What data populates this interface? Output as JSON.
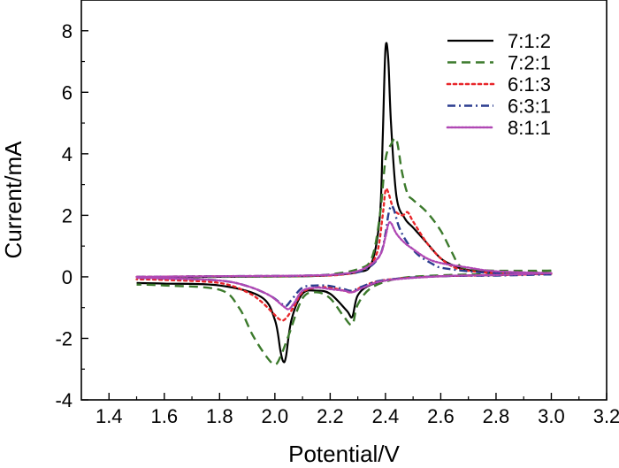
{
  "chart_data": {
    "type": "line",
    "title": "",
    "xlabel": "Potential/V",
    "ylabel": "Current/mA",
    "xlim": [
      1.3,
      3.2
    ],
    "ylim": [
      -4,
      9
    ],
    "x_ticks": [
      1.4,
      1.6,
      1.8,
      2.0,
      2.2,
      2.4,
      2.6,
      2.8,
      3.0,
      3.2
    ],
    "x_tick_labels": [
      "1.4",
      "1.6",
      "1.8",
      "2.0",
      "2.2",
      "2.4",
      "2.6",
      "2.8",
      "3.0",
      "3.2"
    ],
    "y_ticks": [
      -4,
      -2,
      0,
      2,
      4,
      6,
      8
    ],
    "y_tick_labels": [
      "-4",
      "-2",
      "0",
      "2",
      "4",
      "6",
      "8"
    ],
    "grid": false,
    "legend_position": "top-right",
    "series": [
      {
        "name": "7:1:2",
        "color": "#000000",
        "dash": "solid",
        "forward": [
          [
            1.5,
            -0.02
          ],
          [
            1.8,
            0.0
          ],
          [
            2.1,
            0.02
          ],
          [
            2.2,
            0.05
          ],
          [
            2.3,
            0.15
          ],
          [
            2.35,
            0.45
          ],
          [
            2.38,
            2.0
          ],
          [
            2.39,
            4.5
          ],
          [
            2.4,
            7.4
          ],
          [
            2.41,
            7.1
          ],
          [
            2.42,
            5.0
          ],
          [
            2.44,
            2.6
          ],
          [
            2.47,
            1.9
          ],
          [
            2.5,
            1.6
          ],
          [
            2.55,
            1.1
          ],
          [
            2.6,
            0.6
          ],
          [
            2.65,
            0.35
          ],
          [
            2.7,
            0.22
          ],
          [
            2.8,
            0.13
          ],
          [
            3.0,
            0.1
          ]
        ],
        "reverse": [
          [
            3.0,
            0.1
          ],
          [
            2.8,
            0.06
          ],
          [
            2.6,
            0.02
          ],
          [
            2.45,
            -0.05
          ],
          [
            2.35,
            -0.25
          ],
          [
            2.3,
            -0.6
          ],
          [
            2.28,
            -1.3
          ],
          [
            2.26,
            -1.1
          ],
          [
            2.2,
            -0.55
          ],
          [
            2.15,
            -0.45
          ],
          [
            2.1,
            -0.55
          ],
          [
            2.06,
            -1.4
          ],
          [
            2.04,
            -2.6
          ],
          [
            2.03,
            -2.75
          ],
          [
            2.02,
            -2.4
          ],
          [
            2.0,
            -1.4
          ],
          [
            1.95,
            -0.65
          ],
          [
            1.8,
            -0.28
          ],
          [
            1.6,
            -0.22
          ],
          [
            1.5,
            -0.2
          ]
        ]
      },
      {
        "name": "7:2:1",
        "color": "#3c7a2c",
        "dash": "dashed",
        "forward": [
          [
            1.5,
            -0.02
          ],
          [
            1.8,
            0.0
          ],
          [
            2.1,
            0.02
          ],
          [
            2.2,
            0.08
          ],
          [
            2.3,
            0.25
          ],
          [
            2.35,
            0.6
          ],
          [
            2.38,
            2.0
          ],
          [
            2.4,
            3.8
          ],
          [
            2.42,
            4.3
          ],
          [
            2.44,
            4.45
          ],
          [
            2.46,
            3.4
          ],
          [
            2.48,
            2.7
          ],
          [
            2.5,
            2.5
          ],
          [
            2.55,
            2.1
          ],
          [
            2.6,
            1.5
          ],
          [
            2.64,
            0.8
          ],
          [
            2.67,
            0.35
          ],
          [
            2.72,
            0.25
          ],
          [
            2.8,
            0.2
          ],
          [
            3.0,
            0.2
          ]
        ],
        "reverse": [
          [
            3.0,
            0.2
          ],
          [
            2.8,
            0.1
          ],
          [
            2.6,
            0.05
          ],
          [
            2.45,
            -0.05
          ],
          [
            2.35,
            -0.35
          ],
          [
            2.3,
            -0.9
          ],
          [
            2.28,
            -1.55
          ],
          [
            2.25,
            -1.3
          ],
          [
            2.2,
            -0.7
          ],
          [
            2.15,
            -0.5
          ],
          [
            2.1,
            -0.7
          ],
          [
            2.05,
            -1.9
          ],
          [
            2.02,
            -2.6
          ],
          [
            2.0,
            -2.85
          ],
          [
            1.97,
            -2.6
          ],
          [
            1.92,
            -1.9
          ],
          [
            1.87,
            -1.0
          ],
          [
            1.8,
            -0.42
          ],
          [
            1.6,
            -0.28
          ],
          [
            1.5,
            -0.25
          ]
        ]
      },
      {
        "name": "6:1:3",
        "color": "#e8262a",
        "dash": "dotted",
        "forward": [
          [
            1.5,
            0.0
          ],
          [
            1.8,
            0.02
          ],
          [
            2.1,
            0.03
          ],
          [
            2.25,
            0.08
          ],
          [
            2.33,
            0.3
          ],
          [
            2.37,
            0.8
          ],
          [
            2.39,
            2.0
          ],
          [
            2.4,
            2.8
          ],
          [
            2.41,
            2.75
          ],
          [
            2.43,
            2.2
          ],
          [
            2.46,
            2.0
          ],
          [
            2.48,
            2.1
          ],
          [
            2.5,
            1.8
          ],
          [
            2.55,
            1.1
          ],
          [
            2.6,
            0.6
          ],
          [
            2.65,
            0.3
          ],
          [
            2.7,
            0.2
          ],
          [
            2.8,
            0.12
          ],
          [
            3.0,
            0.1
          ]
        ],
        "reverse": [
          [
            3.0,
            0.1
          ],
          [
            2.8,
            0.05
          ],
          [
            2.6,
            0.02
          ],
          [
            2.4,
            -0.1
          ],
          [
            2.32,
            -0.3
          ],
          [
            2.28,
            -0.5
          ],
          [
            2.25,
            -0.45
          ],
          [
            2.2,
            -0.35
          ],
          [
            2.15,
            -0.35
          ],
          [
            2.1,
            -0.5
          ],
          [
            2.07,
            -0.95
          ],
          [
            2.04,
            -1.35
          ],
          [
            2.02,
            -1.4
          ],
          [
            1.99,
            -1.15
          ],
          [
            1.95,
            -0.8
          ],
          [
            1.9,
            -0.5
          ],
          [
            1.8,
            -0.2
          ],
          [
            1.6,
            -0.1
          ],
          [
            1.5,
            -0.08
          ]
        ]
      },
      {
        "name": "6:3:1",
        "color": "#2b3d8f",
        "dash": "dashdot",
        "forward": [
          [
            1.5,
            0.0
          ],
          [
            1.8,
            0.02
          ],
          [
            2.1,
            0.04
          ],
          [
            2.25,
            0.1
          ],
          [
            2.33,
            0.25
          ],
          [
            2.38,
            0.7
          ],
          [
            2.4,
            1.4
          ],
          [
            2.41,
            2.0
          ],
          [
            2.42,
            2.3
          ],
          [
            2.43,
            2.2
          ],
          [
            2.45,
            1.6
          ],
          [
            2.48,
            1.1
          ],
          [
            2.52,
            0.7
          ],
          [
            2.57,
            0.42
          ],
          [
            2.6,
            0.3
          ],
          [
            2.7,
            0.18
          ],
          [
            2.8,
            0.12
          ],
          [
            3.0,
            0.08
          ]
        ],
        "reverse": [
          [
            3.0,
            0.08
          ],
          [
            2.8,
            0.04
          ],
          [
            2.6,
            0.02
          ],
          [
            2.4,
            -0.1
          ],
          [
            2.32,
            -0.3
          ],
          [
            2.28,
            -0.45
          ],
          [
            2.25,
            -0.4
          ],
          [
            2.2,
            -0.3
          ],
          [
            2.15,
            -0.28
          ],
          [
            2.1,
            -0.35
          ],
          [
            2.06,
            -0.75
          ],
          [
            2.04,
            -0.95
          ],
          [
            2.02,
            -0.85
          ],
          [
            1.98,
            -0.6
          ],
          [
            1.9,
            -0.3
          ],
          [
            1.8,
            -0.12
          ],
          [
            1.6,
            -0.05
          ],
          [
            1.5,
            -0.03
          ]
        ]
      },
      {
        "name": "8:1:1",
        "color": "#b048b4",
        "dash": "dense-dotted",
        "forward": [
          [
            1.5,
            0.0
          ],
          [
            1.8,
            0.02
          ],
          [
            2.1,
            0.04
          ],
          [
            2.25,
            0.1
          ],
          [
            2.33,
            0.3
          ],
          [
            2.38,
            0.7
          ],
          [
            2.4,
            1.3
          ],
          [
            2.41,
            1.7
          ],
          [
            2.42,
            1.75
          ],
          [
            2.44,
            1.4
          ],
          [
            2.47,
            1.1
          ],
          [
            2.5,
            0.9
          ],
          [
            2.55,
            0.6
          ],
          [
            2.6,
            0.45
          ],
          [
            2.7,
            0.3
          ],
          [
            2.8,
            0.18
          ],
          [
            3.0,
            0.12
          ]
        ],
        "reverse": [
          [
            3.0,
            0.12
          ],
          [
            2.8,
            0.06
          ],
          [
            2.6,
            0.02
          ],
          [
            2.4,
            -0.12
          ],
          [
            2.32,
            -0.35
          ],
          [
            2.28,
            -0.5
          ],
          [
            2.25,
            -0.45
          ],
          [
            2.2,
            -0.4
          ],
          [
            2.15,
            -0.35
          ],
          [
            2.1,
            -0.45
          ],
          [
            2.07,
            -0.85
          ],
          [
            2.05,
            -1.05
          ],
          [
            2.03,
            -0.95
          ],
          [
            1.98,
            -0.6
          ],
          [
            1.9,
            -0.3
          ],
          [
            1.8,
            -0.12
          ],
          [
            1.6,
            -0.05
          ],
          [
            1.5,
            -0.03
          ]
        ]
      }
    ]
  }
}
